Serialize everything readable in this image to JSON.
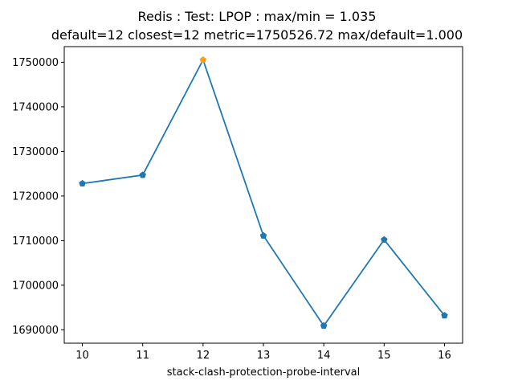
{
  "chart_data": {
    "type": "line",
    "title": "Redis : Test: LPOP : max/min = 1.035",
    "subtitle": "default=12 closest=12 metric=1750526.72 max/default=1.000",
    "xlabel": "stack-clash-protection-probe-interval",
    "ylabel": "",
    "x": [
      10,
      11,
      12,
      13,
      14,
      15,
      16
    ],
    "xticks": [
      "10",
      "11",
      "12",
      "13",
      "14",
      "15",
      "16"
    ],
    "yticks": [
      "1690000",
      "1700000",
      "1710000",
      "1720000",
      "1730000",
      "1740000",
      "1750000"
    ],
    "xlim": [
      9.7,
      16.3
    ],
    "ylim": [
      1687000,
      1753500
    ],
    "grid": false,
    "series": [
      {
        "values": [
          1722800,
          1724700,
          1750526.72,
          1711100,
          1690900,
          1710200,
          1693200
        ],
        "color": "#1f77b4",
        "marker": "pentagon"
      }
    ],
    "highlight": {
      "x": 12,
      "y": 1750526.72,
      "color": "#ff9f1c"
    }
  }
}
